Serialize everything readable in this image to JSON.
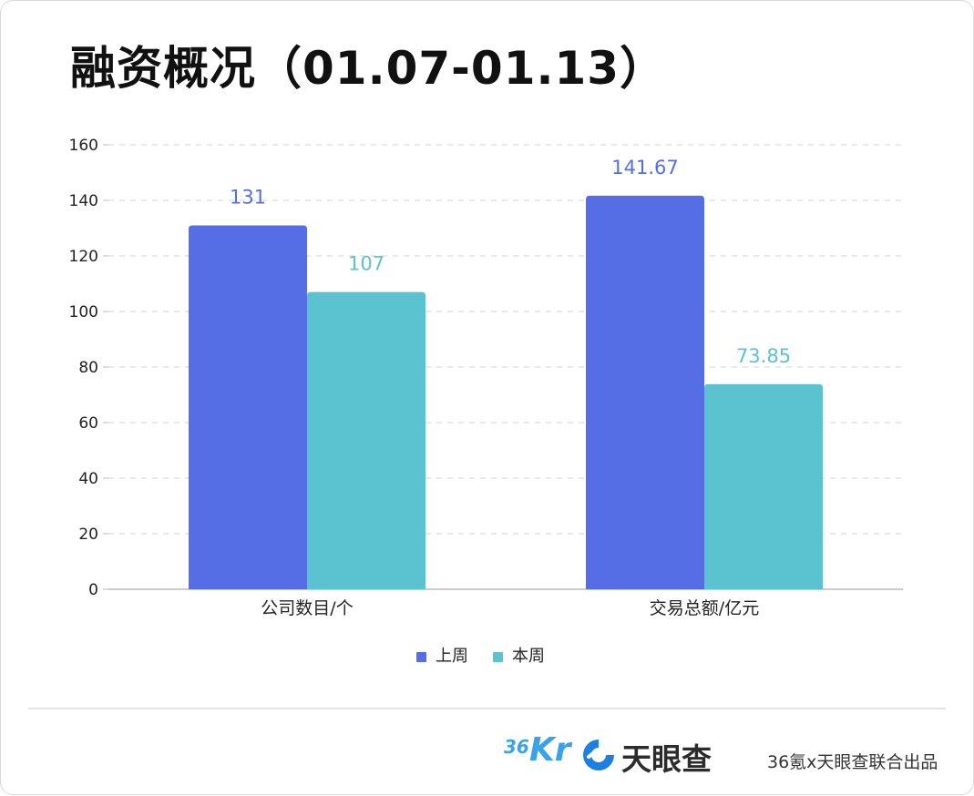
{
  "title": "融资概况（01.07-01.13）",
  "chart_data": {
    "type": "bar",
    "categories": [
      "公司数目/个",
      "交易总额/亿元"
    ],
    "series": [
      {
        "name": "上周",
        "values": [
          131,
          141.67
        ],
        "labels": [
          "131",
          "141.67"
        ],
        "color": "#556ee6"
      },
      {
        "name": "本周",
        "values": [
          107,
          73.85
        ],
        "labels": [
          "107",
          "73.85"
        ],
        "color": "#5bc3d0"
      }
    ],
    "ylim": [
      0,
      160
    ],
    "yticks": [
      0,
      20,
      40,
      60,
      80,
      100,
      120,
      140,
      160
    ],
    "grid": true,
    "legend": "bottom"
  },
  "footer": {
    "logo_36kr_sup": "36",
    "logo_36kr_main": "Kr",
    "logo_tianyancha": "天眼查",
    "credit": "36氪x天眼查联合出品"
  }
}
